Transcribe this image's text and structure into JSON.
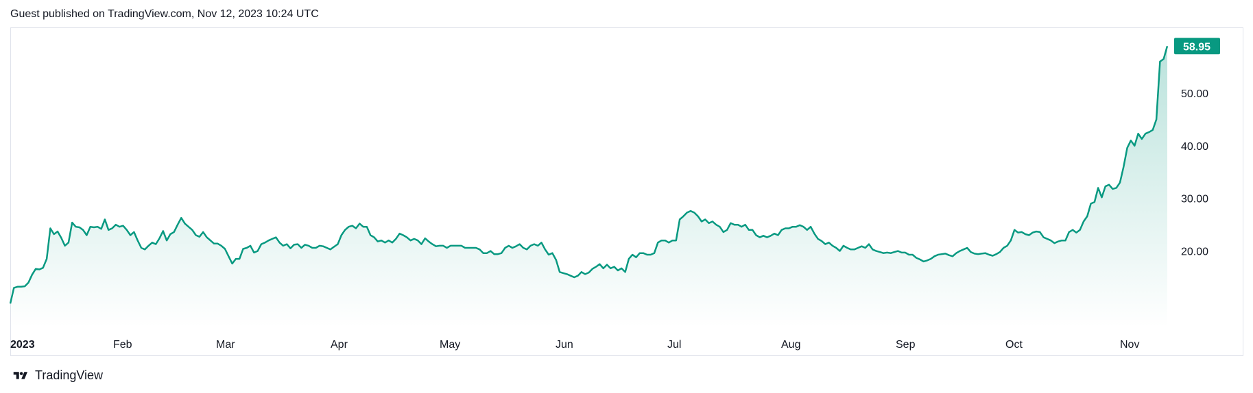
{
  "header": {
    "text": "Guest published on TradingView.com, Nov 12, 2023 10:24 UTC"
  },
  "footer": {
    "brand": "TradingView",
    "logo_icon": "tradingview-logo-icon"
  },
  "colors": {
    "line": "#089981",
    "fill_top": "rgba(8,153,129,0.28)",
    "fill_bottom": "rgba(8,153,129,0.0)",
    "price_tag_bg": "#089981"
  },
  "chart_data": {
    "type": "area",
    "x_axis_labels": [
      "2023",
      "Feb",
      "Mar",
      "Apr",
      "May",
      "Jun",
      "Jul",
      "Aug",
      "Sep",
      "Oct",
      "Nov"
    ],
    "y_ticks": [
      {
        "value": 20,
        "label": "20.00"
      },
      {
        "value": 30,
        "label": "30.00"
      },
      {
        "value": 40,
        "label": "40.00"
      },
      {
        "value": 50,
        "label": "50.00"
      }
    ],
    "ylim": [
      5.5,
      62.5
    ],
    "last_price": {
      "value": 58.95,
      "label": "58.95"
    },
    "grid": false,
    "series": [
      {
        "values": [
          10.0,
          13.0,
          13.2,
          13.2,
          13.3,
          14.0,
          15.5,
          16.6,
          16.5,
          16.8,
          18.5,
          24.3,
          23.2,
          23.7,
          22.5,
          21.0,
          21.6,
          25.4,
          24.6,
          24.5,
          24.0,
          23.0,
          24.6,
          24.5,
          24.6,
          24.2,
          26.0,
          24.0,
          24.3,
          25.0,
          24.6,
          24.8,
          24.0,
          23.0,
          23.6,
          22.0,
          20.6,
          20.3,
          21.0,
          21.6,
          21.3,
          22.4,
          23.8,
          22.0,
          23.2,
          23.6,
          25.0,
          26.3,
          25.2,
          24.6,
          24.0,
          23.0,
          22.7,
          23.6,
          22.6,
          22.0,
          21.4,
          21.4,
          21.0,
          20.4,
          19.0,
          17.6,
          18.5,
          18.5,
          20.4,
          20.6,
          21.0,
          19.7,
          20.0,
          21.3,
          21.6,
          22.0,
          22.3,
          22.6,
          21.6,
          21.0,
          21.3,
          20.5,
          21.2,
          21.3,
          20.6,
          21.2,
          21.0,
          20.6,
          20.6,
          21.0,
          20.9,
          20.6,
          20.3,
          20.8,
          21.3,
          23.0,
          24.0,
          24.6,
          24.8,
          24.3,
          25.2,
          24.6,
          24.6,
          23.0,
          22.6,
          21.8,
          22.0,
          21.6,
          22.0,
          21.6,
          22.3,
          23.3,
          23.0,
          22.6,
          22.0,
          22.3,
          22.0,
          21.3,
          22.4,
          21.8,
          21.3,
          20.9,
          21.0,
          21.0,
          20.6,
          21.0,
          21.0,
          21.0,
          21.0,
          20.6,
          20.6,
          20.6,
          20.6,
          20.3,
          19.6,
          19.6,
          20.0,
          19.4,
          19.4,
          19.6,
          20.6,
          21.0,
          20.6,
          20.9,
          21.3,
          20.6,
          20.3,
          21.0,
          21.3,
          21.0,
          21.6,
          20.3,
          19.3,
          19.6,
          18.3,
          16.0,
          15.8,
          15.6,
          15.3,
          15.0,
          15.3,
          16.0,
          15.6,
          15.9,
          16.6,
          17.0,
          17.5,
          16.7,
          17.4,
          16.7,
          17.0,
          16.3,
          16.7,
          16.0,
          18.5,
          19.3,
          18.8,
          19.6,
          19.6,
          19.3,
          19.3,
          19.6,
          21.6,
          22.0,
          22.0,
          21.6,
          22.0,
          22.0,
          26.0,
          26.6,
          27.3,
          27.6,
          27.3,
          26.6,
          25.6,
          26.0,
          25.3,
          25.6,
          25.0,
          24.6,
          23.6,
          24.0,
          25.3,
          25.0,
          25.0,
          24.6,
          25.0,
          24.0,
          24.0,
          23.0,
          22.6,
          22.9,
          22.6,
          22.9,
          23.3,
          23.0,
          24.0,
          24.3,
          24.3,
          24.6,
          24.6,
          24.9,
          24.6,
          24.0,
          24.6,
          23.3,
          22.3,
          21.9,
          21.3,
          21.6,
          21.0,
          20.6,
          20.0,
          21.0,
          20.6,
          20.3,
          20.3,
          20.6,
          20.9,
          20.6,
          21.3,
          20.3,
          20.0,
          19.8,
          19.6,
          19.7,
          19.6,
          19.8,
          20.0,
          19.7,
          19.7,
          19.3,
          19.3,
          18.7,
          18.4,
          18.0,
          18.2,
          18.5,
          19.0,
          19.3,
          19.4,
          19.5,
          19.2,
          19.0,
          19.6,
          20.0,
          20.3,
          20.6,
          19.8,
          19.5,
          19.4,
          19.5,
          19.6,
          19.3,
          19.1,
          19.4,
          19.8,
          20.6,
          21.0,
          22.0,
          24.0,
          23.5,
          23.6,
          23.2,
          23.0,
          23.5,
          23.7,
          23.6,
          22.6,
          22.3,
          22.0,
          21.5,
          21.8,
          22.0,
          22.0,
          23.6,
          24.0,
          23.5,
          24.0,
          25.6,
          26.6,
          29.0,
          29.3,
          32.0,
          30.2,
          32.3,
          32.6,
          31.8,
          32.0,
          33.0,
          36.0,
          39.6,
          41.0,
          40.0,
          42.3,
          41.3,
          42.3,
          42.6,
          43.0,
          45.0,
          56.0,
          56.5,
          58.95
        ]
      }
    ]
  }
}
